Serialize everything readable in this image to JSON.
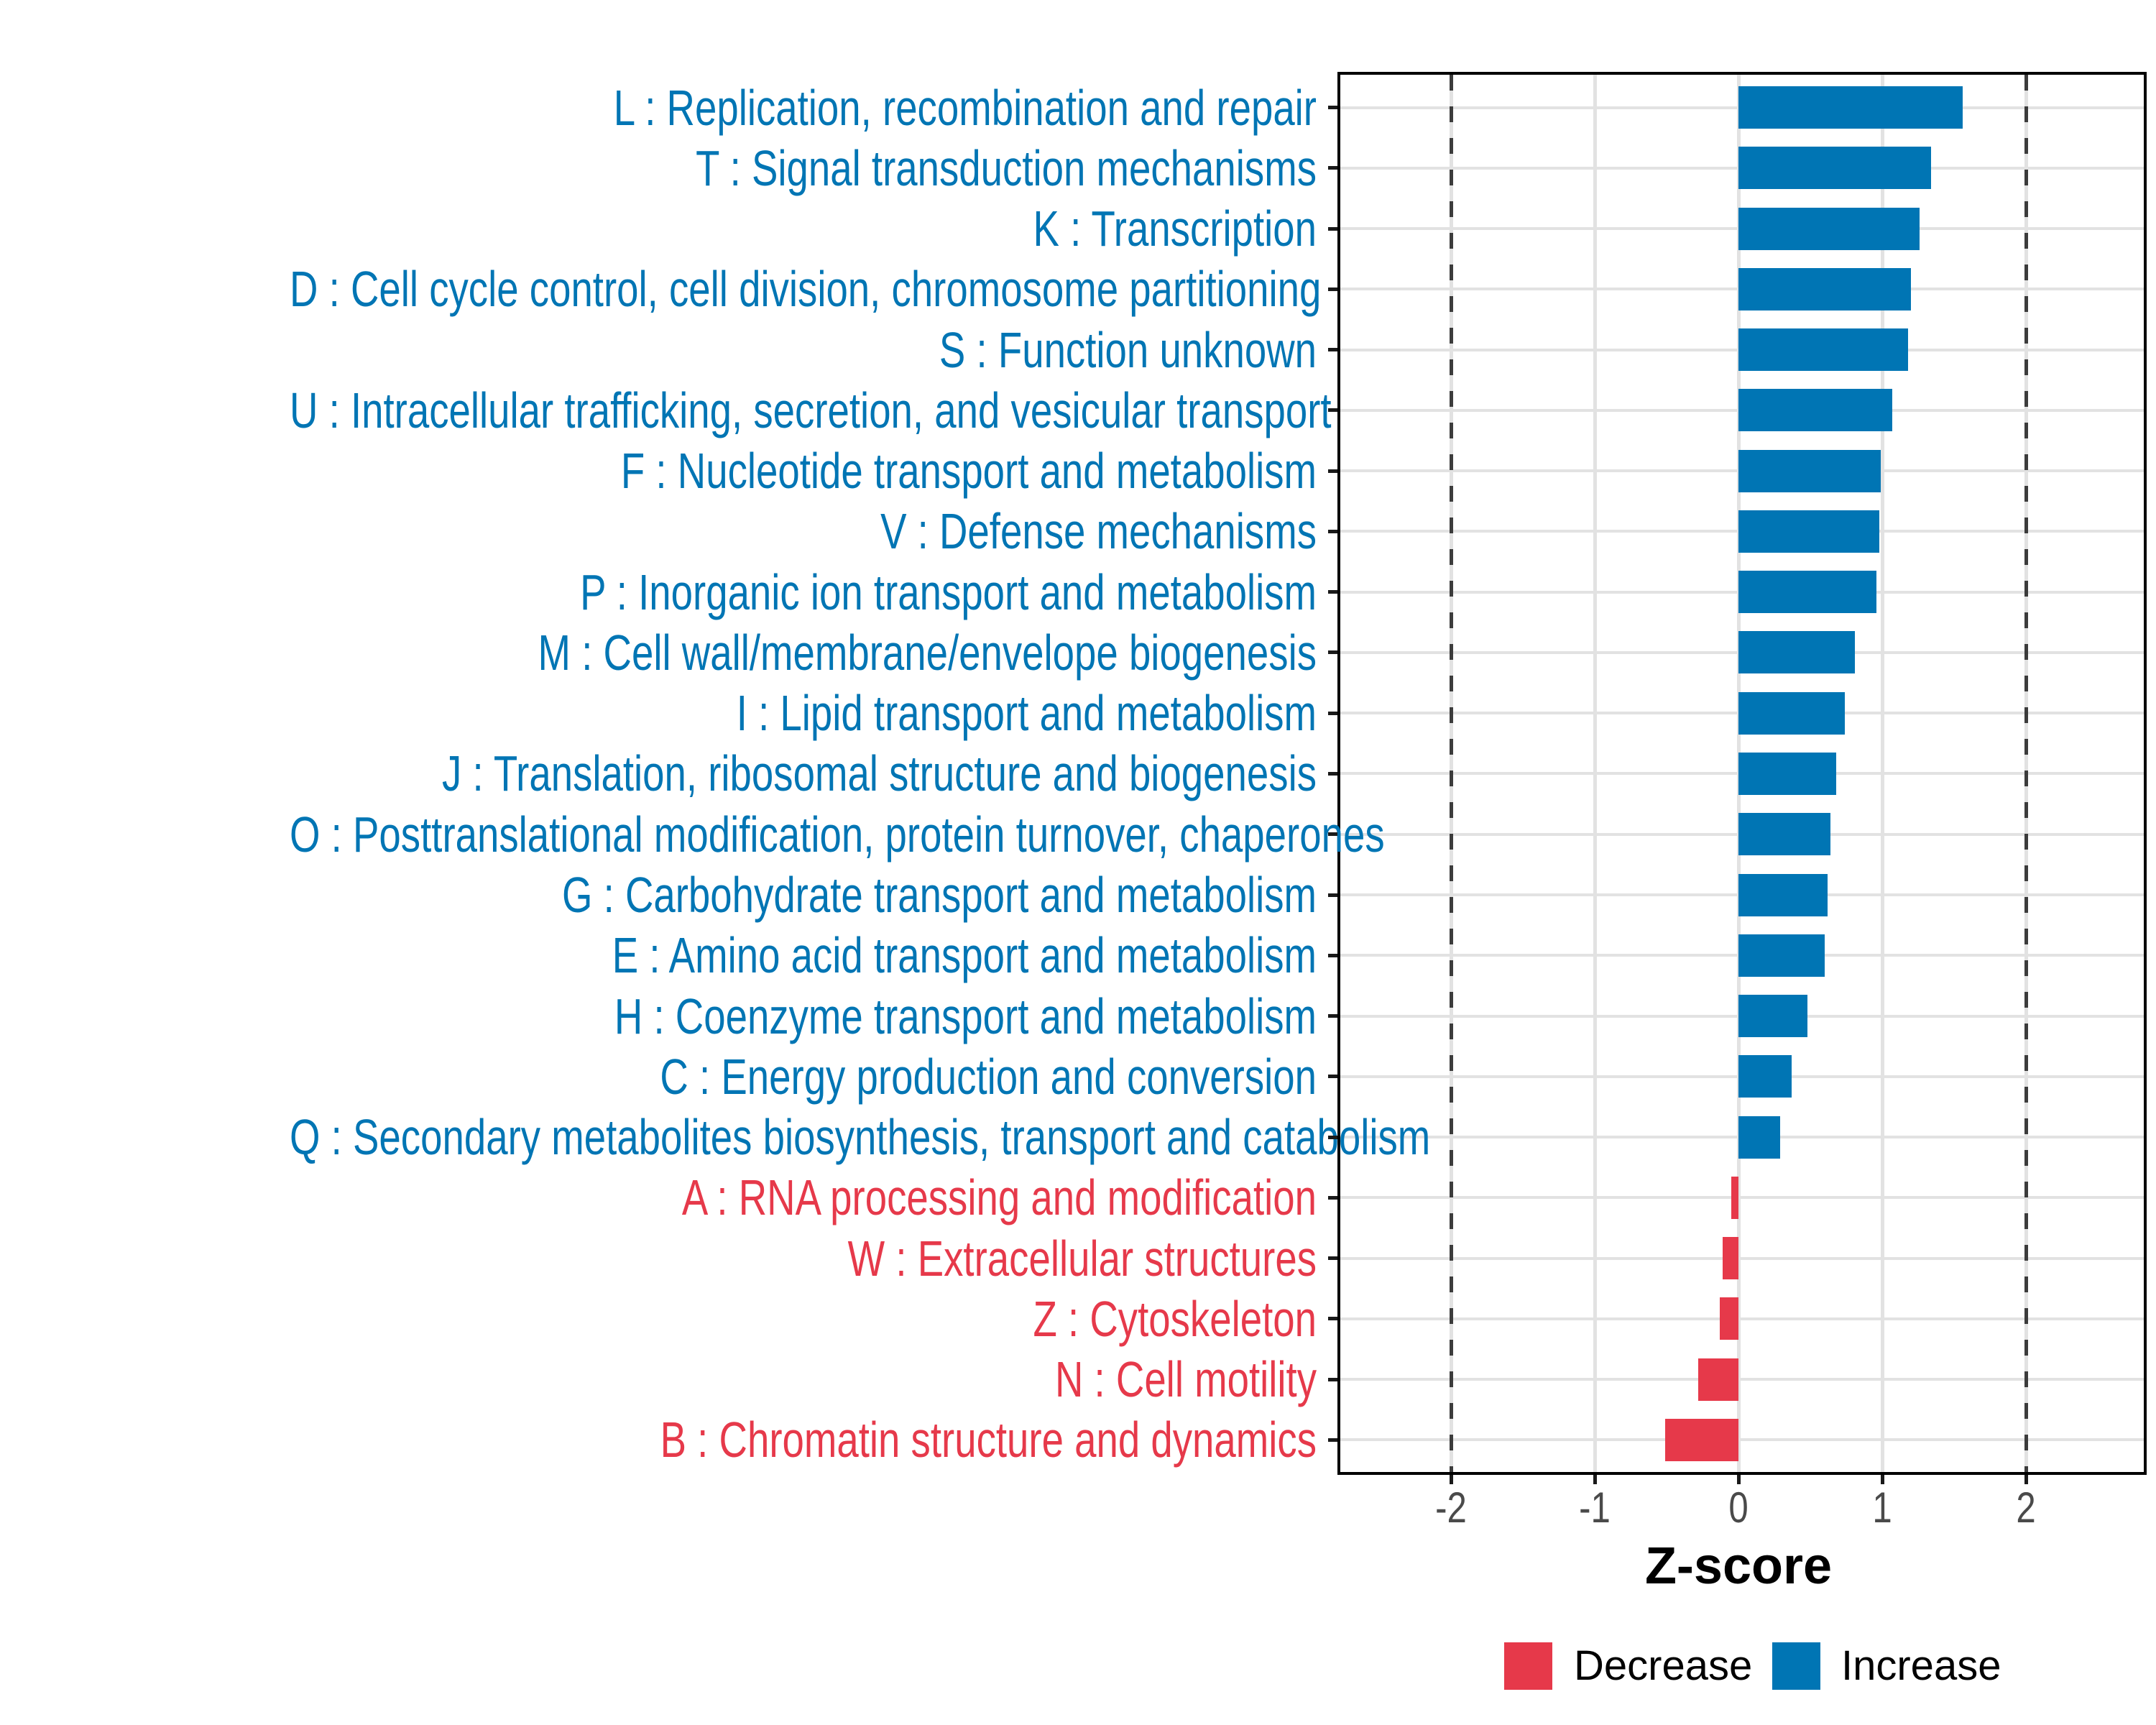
{
  "chart_data": {
    "type": "bar",
    "orientation": "horizontal",
    "title": "",
    "xlabel": "Z-score",
    "ylabel": "",
    "x_ticks": [
      -2,
      -1,
      0,
      1,
      2
    ],
    "x_tick_labels": [
      "-2",
      "-1",
      "0",
      "1",
      "2"
    ],
    "x_range": [
      -2.79,
      2.84
    ],
    "dashed_reference_lines_x": [
      -2,
      2
    ],
    "grid": true,
    "colors": {
      "increase": "#0075B4",
      "decrease": "#E6394A",
      "gridline": "#E2E2E2",
      "dashed_line": "#3C3C3C",
      "axis_text": "#4A4A4A",
      "panel_border": "#000000"
    },
    "categories": [
      "L : Replication, recombination and repair",
      "T : Signal transduction mechanisms",
      "K : Transcription",
      "D : Cell cycle control, cell division, chromosome partitioning",
      "S : Function unknown",
      "U : Intracellular trafficking, secretion, and vesicular transport",
      "F : Nucleotide transport and metabolism",
      "V : Defense mechanisms",
      "P : Inorganic ion transport and metabolism",
      "M : Cell wall/membrane/envelope biogenesis",
      "I : Lipid transport and metabolism",
      "J : Translation, ribosomal structure and biogenesis",
      "O : Posttranslational modification, protein turnover, chaperones",
      "G : Carbohydrate transport and metabolism",
      "E : Amino acid transport and metabolism",
      "H : Coenzyme transport and metabolism",
      "C : Energy production and conversion",
      "Q : Secondary metabolites biosynthesis, transport and catabolism",
      "A : RNA processing and modification",
      "W : Extracellular structures",
      "Z : Cytoskeleton",
      "N : Cell motility",
      "B : Chromatin structure and dynamics"
    ],
    "values": [
      1.56,
      1.34,
      1.26,
      1.2,
      1.18,
      1.07,
      0.99,
      0.98,
      0.96,
      0.81,
      0.74,
      0.68,
      0.64,
      0.62,
      0.6,
      0.48,
      0.37,
      0.29,
      -0.05,
      -0.11,
      -0.13,
      -0.28,
      -0.51
    ],
    "directions": [
      "increase",
      "increase",
      "increase",
      "increase",
      "increase",
      "increase",
      "increase",
      "increase",
      "increase",
      "increase",
      "increase",
      "increase",
      "increase",
      "increase",
      "increase",
      "increase",
      "increase",
      "increase",
      "decrease",
      "decrease",
      "decrease",
      "decrease",
      "decrease"
    ],
    "legend": {
      "position": "bottom-right",
      "entries": [
        {
          "label": "Decrease",
          "color": "#E6394A"
        },
        {
          "label": "Increase",
          "color": "#0075B4"
        }
      ]
    }
  }
}
